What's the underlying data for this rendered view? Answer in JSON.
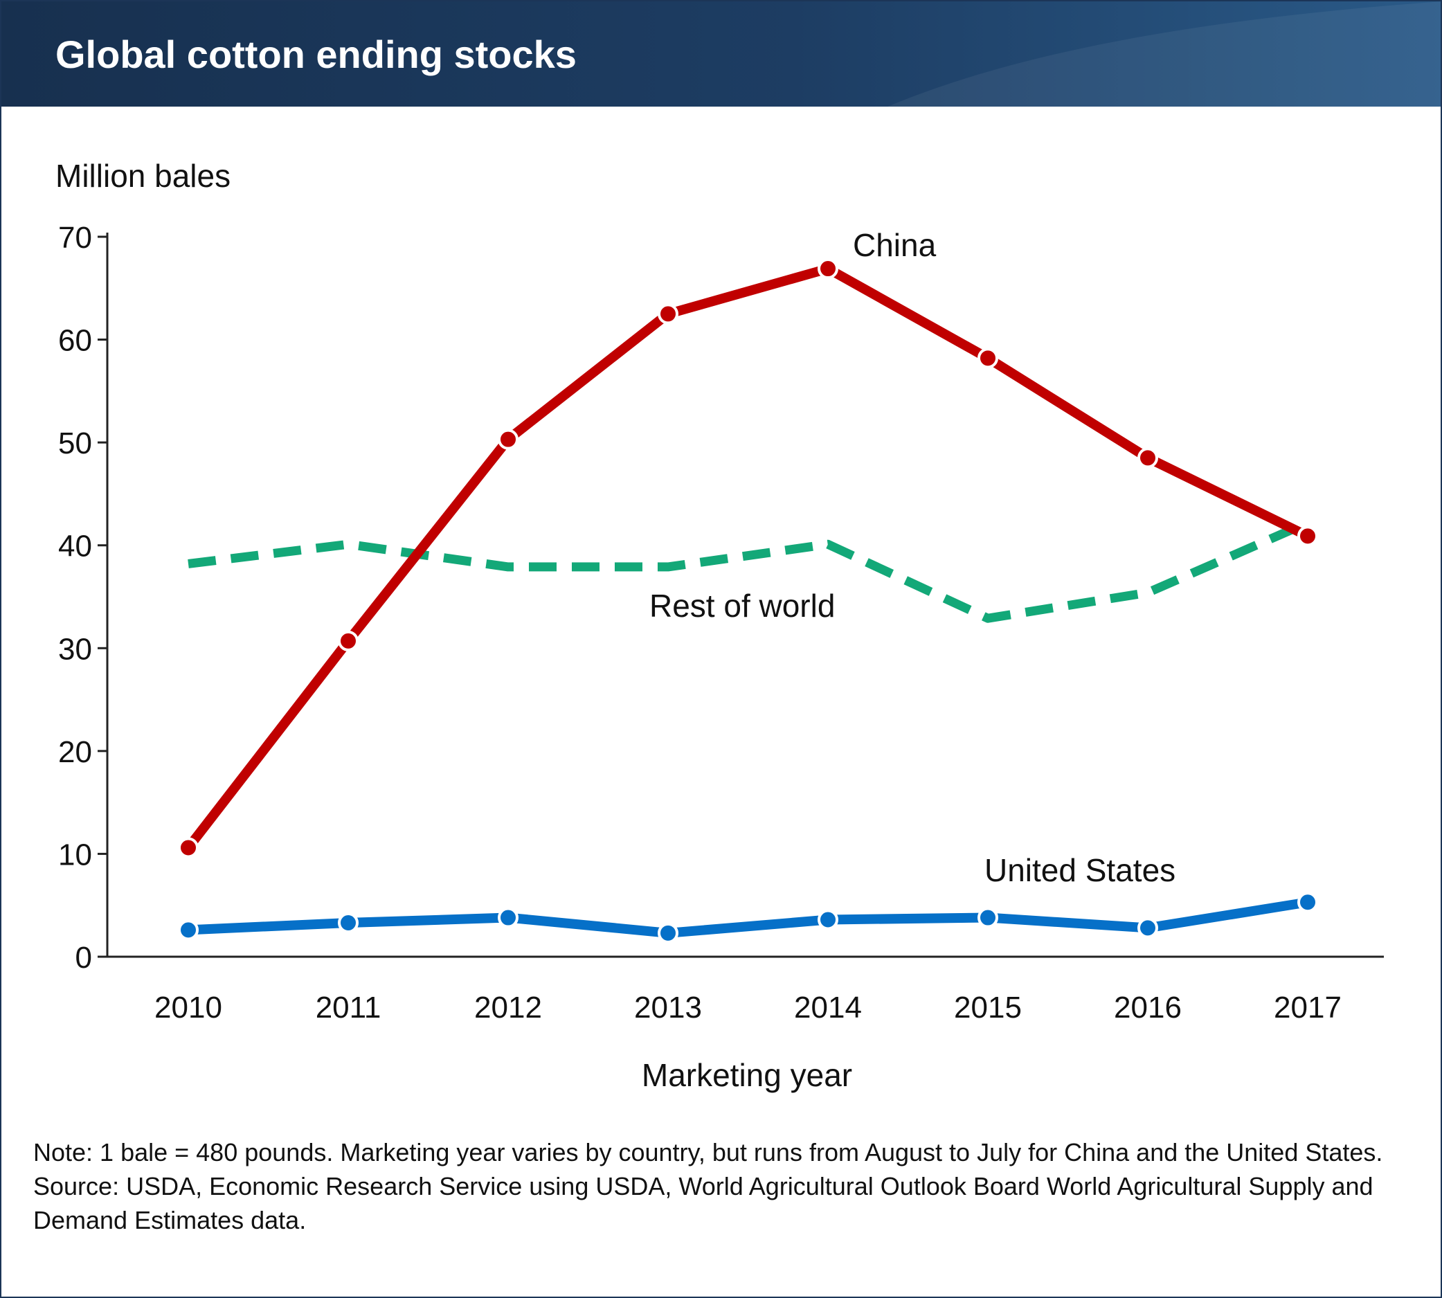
{
  "header": {
    "title": "Global cotton ending stocks"
  },
  "chart_data": {
    "type": "line",
    "title": "Global cotton ending stocks",
    "ylabel": "Million bales",
    "xlabel": "Marketing year",
    "ylim": [
      0,
      70
    ],
    "yticks": [
      0,
      10,
      20,
      30,
      40,
      50,
      60,
      70
    ],
    "categories": [
      "2010",
      "2011",
      "2012",
      "2013",
      "2014",
      "2015",
      "2016",
      "2017"
    ],
    "grid": false,
    "legend": "inline labels",
    "series": [
      {
        "name": "China",
        "color": "#c00000",
        "style": "solid-markers",
        "values": [
          10.6,
          30.7,
          50.3,
          62.5,
          66.9,
          58.2,
          48.5,
          40.9
        ]
      },
      {
        "name": "Rest of world",
        "color": "#13a878",
        "style": "dashed",
        "values": [
          38.2,
          40.1,
          37.9,
          37.9,
          40.1,
          32.9,
          35.4,
          42.2
        ]
      },
      {
        "name": "United States",
        "color": "#0670c8",
        "style": "solid-markers",
        "values": [
          2.6,
          3.3,
          3.8,
          2.3,
          3.6,
          3.8,
          2.8,
          5.3
        ]
      }
    ]
  },
  "notes": {
    "note": "Note: 1 bale = 480 pounds. Marketing year varies by country, but runs from August to July for China and the United States.",
    "source": "Source: USDA, Economic Research Service using USDA, World Agricultural Outlook Board World Agricultural Supply and Demand Estimates data."
  }
}
